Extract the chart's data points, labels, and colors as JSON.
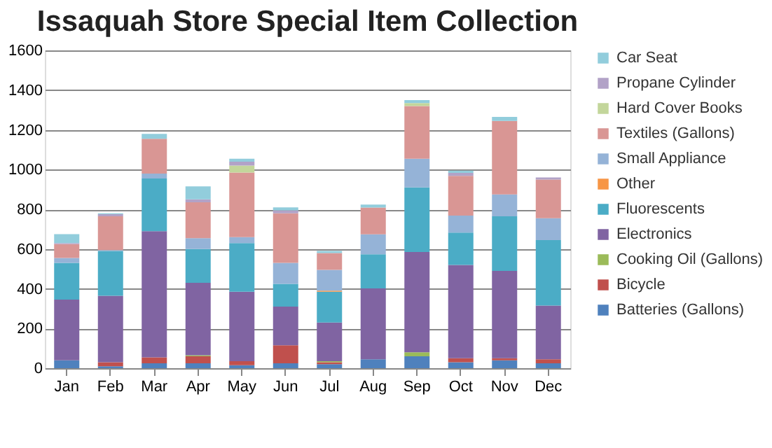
{
  "chart_data": {
    "type": "bar",
    "title": "Issaquah Store Special Item Collection",
    "stacked": true,
    "legend": "right",
    "grid": "y",
    "categories": [
      "Jan",
      "Feb",
      "Mar",
      "Apr",
      "May",
      "Jun",
      "Jul",
      "Aug",
      "Sep",
      "Oct",
      "Nov",
      "Dec"
    ],
    "ylim": [
      0,
      1600
    ],
    "yticks": [
      0,
      200,
      400,
      600,
      800,
      1000,
      1200,
      1400,
      1600
    ],
    "series": [
      {
        "name": "Batteries (Gallons)",
        "color": "#4f81bd",
        "values": [
          40,
          10,
          25,
          25,
          15,
          25,
          20,
          45,
          60,
          30,
          40,
          25
        ]
      },
      {
        "name": "Bicycle",
        "color": "#c0504d",
        "values": [
          0,
          20,
          30,
          35,
          20,
          90,
          10,
          0,
          0,
          20,
          10,
          20
        ]
      },
      {
        "name": "Cooking Oil (Gallons)",
        "color": "#9bbb59",
        "values": [
          0,
          0,
          0,
          5,
          0,
          0,
          5,
          0,
          20,
          0,
          0,
          0
        ]
      },
      {
        "name": "Electronics",
        "color": "#8064a2",
        "values": [
          305,
          335,
          635,
          365,
          350,
          195,
          195,
          357,
          505,
          470,
          440,
          270
        ]
      },
      {
        "name": "Fluorescents",
        "color": "#4bacc6",
        "values": [
          185,
          225,
          265,
          170,
          245,
          115,
          155,
          172,
          325,
          163,
          275,
          330
        ]
      },
      {
        "name": "Other",
        "color": "#f79646",
        "values": [
          0,
          0,
          0,
          0,
          0,
          0,
          5,
          0,
          0,
          0,
          0,
          0
        ]
      },
      {
        "name": "Small Appliance",
        "color": "#95b3d7",
        "values": [
          25,
          5,
          25,
          55,
          30,
          105,
          105,
          100,
          145,
          85,
          110,
          110
        ]
      },
      {
        "name": "Textiles (Gallons)",
        "color": "#d99694",
        "values": [
          70,
          170,
          175,
          180,
          325,
          250,
          85,
          135,
          265,
          200,
          370,
          195
        ]
      },
      {
        "name": "Hard Cover Books",
        "color": "#c3d69b",
        "values": [
          0,
          0,
          0,
          0,
          35,
          0,
          0,
          0,
          15,
          0,
          0,
          0
        ]
      },
      {
        "name": "Propane Cylinder",
        "color": "#b2a2c7",
        "values": [
          5,
          10,
          0,
          15,
          20,
          15,
          0,
          0,
          0,
          15,
          0,
          10
        ]
      },
      {
        "name": "Car Seat",
        "color": "#92cddc",
        "values": [
          45,
          5,
          25,
          65,
          15,
          15,
          10,
          15,
          15,
          12,
          20,
          0
        ]
      }
    ]
  }
}
